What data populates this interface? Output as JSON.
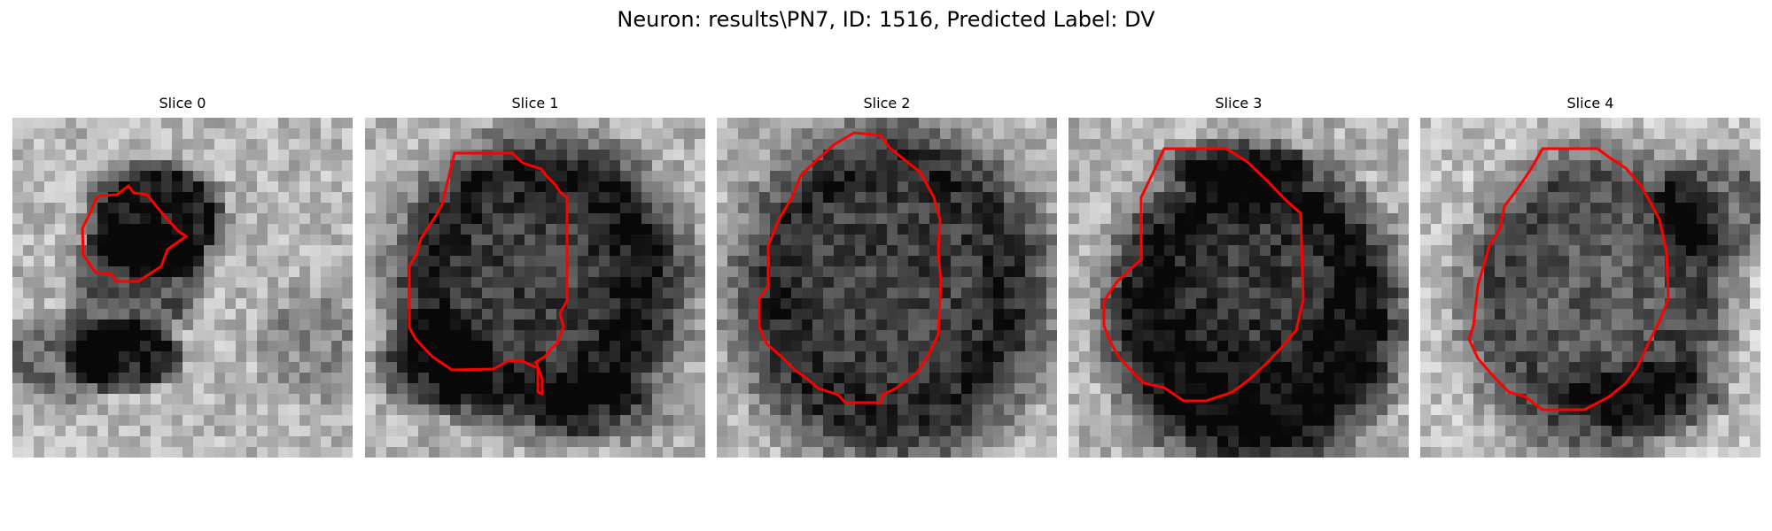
{
  "figure": {
    "title": "Neuron: results\\PN7, ID: 1516, Predicted Label: DV"
  },
  "colors": {
    "contour": "#ff0000",
    "background": "#ffffff"
  },
  "slices": [
    {
      "title": "Slice 0"
    },
    {
      "title": "Slice 1"
    },
    {
      "title": "Slice 2"
    },
    {
      "title": "Slice 3"
    },
    {
      "title": "Slice 4"
    }
  ]
}
